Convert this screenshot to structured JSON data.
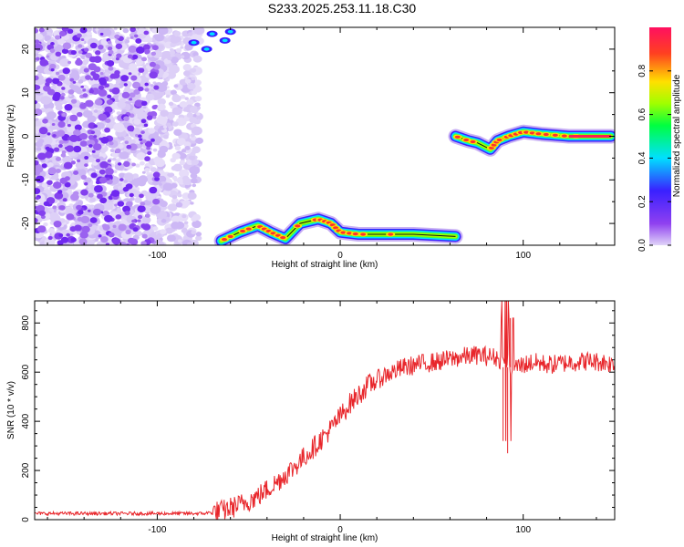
{
  "title": "S233.2025.253.11.18.C30",
  "colors": {
    "snr_line": "#e8262b",
    "frame": "#000000",
    "colorbar_stops": [
      "#e0d4f8",
      "#8f40f0",
      "#3a20ff",
      "#00e0ff",
      "#00ff40",
      "#a0ff00",
      "#ffe000",
      "#ff4020",
      "#ff1060"
    ]
  },
  "chart_data": [
    {
      "type": "heatmap",
      "title": "",
      "xlabel": "Height of straight line (km)",
      "ylabel": "Frequency (Hz)",
      "xlim": [
        -167,
        150
      ],
      "ylim": [
        -25,
        25
      ],
      "x_ticks": [
        -100,
        0,
        100
      ],
      "y_ticks": [
        20,
        10,
        0,
        -10,
        -20
      ],
      "colorbar": {
        "label": "Normalized spectral amplitude",
        "range": [
          0,
          1
        ],
        "ticks": [
          0.0,
          0.2,
          0.4,
          0.6,
          0.8
        ]
      },
      "signal_track": {
        "description_points": [
          [
            -65,
            -24
          ],
          [
            -55,
            -22
          ],
          [
            -45,
            -20.5
          ],
          [
            -38,
            -22
          ],
          [
            -30,
            -23.5
          ],
          [
            -22,
            -20
          ],
          [
            -12,
            -19
          ],
          [
            -5,
            -20
          ],
          [
            0,
            -22
          ],
          [
            10,
            -22.5
          ],
          [
            25,
            -22.5
          ],
          [
            40,
            -22.5
          ],
          [
            63,
            -23
          ],
          [
            63,
            0
          ],
          [
            70,
            -1
          ],
          [
            75,
            -1.5
          ],
          [
            82,
            -3
          ],
          [
            86,
            -1
          ],
          [
            92,
            0
          ],
          [
            100,
            1
          ],
          [
            110,
            0.5
          ],
          [
            125,
            0
          ],
          [
            148,
            0
          ]
        ]
      },
      "noise_region_x": [
        -167,
        -70
      ]
    },
    {
      "type": "line",
      "title": "",
      "xlabel": "Height of straight line (km)",
      "ylabel": "SNR (10 * v/v)",
      "xlim": [
        -167,
        150
      ],
      "ylim": [
        0,
        890
      ],
      "x_ticks": [
        -100,
        0,
        100
      ],
      "y_ticks": [
        0,
        200,
        400,
        600,
        800
      ],
      "series": [
        {
          "name": "",
          "trend": {
            "x": [
              -167,
              -100,
              -75,
              -65,
              -55,
              -45,
              -35,
              -25,
              -15,
              -5,
              5,
              15,
              25,
              35,
              45,
              55,
              65,
              75,
              85,
              90,
              95,
              105,
              115,
              125,
              135,
              145,
              150
            ],
            "y": [
              25,
              25,
              25,
              35,
              60,
              95,
              150,
              215,
              290,
              370,
              470,
              545,
              590,
              620,
              635,
              645,
              660,
              670,
              660,
              640,
              620,
              640,
              630,
              640,
              645,
              640,
              630
            ]
          },
          "spikes": [
            {
              "x": 91,
              "y": 890
            },
            {
              "x": 91.5,
              "y": 270
            },
            {
              "x": 89,
              "y": 320
            },
            {
              "x": 93,
              "y": 820
            }
          ]
        }
      ]
    }
  ]
}
